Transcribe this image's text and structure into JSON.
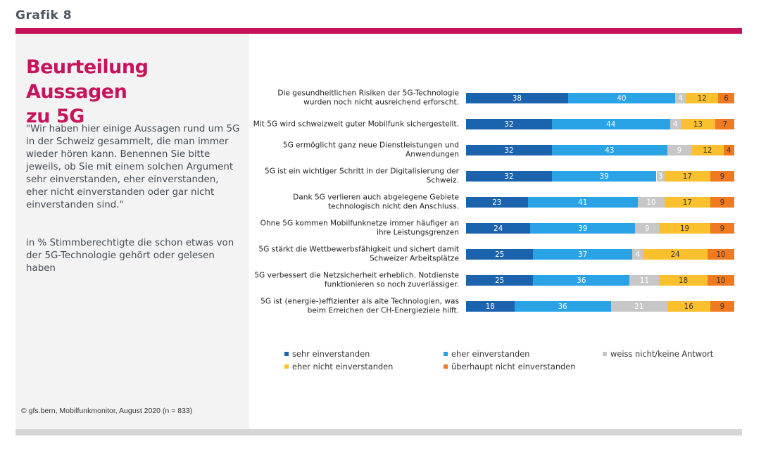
{
  "header": {
    "grafik_label": "Grafik 8"
  },
  "panel": {
    "title_line1": "Beurteilung Aussagen",
    "title_line2": "zu 5G",
    "question": "\"Wir haben hier einige Aussagen rund um 5G in der Schweiz gesammelt, die man immer wieder hören kann. Benennen Sie bitte jeweils, ob Sie mit einem solchen Argument sehr einverstanden, eher einverstanden, eher nicht einverstanden oder gar nicht einverstanden sind.\"",
    "subtitle": "in % Stimmberechtigte die schon etwas von der 5G-Technologie gehört oder gelesen haben",
    "source": "© gfs.bern, Mobilfunkmonitor, August 2020 (n = 833)"
  },
  "chart_data": {
    "type": "bar",
    "orientation": "horizontal",
    "stacked": true,
    "unit": "%",
    "categories": [
      [
        "Die gesundheitlichen Risiken der 5G-Technologie",
        "wurden noch nicht ausreichend erforscht."
      ],
      [
        "Mit 5G wird schweizweit guter Mobilfunk sichergestellt."
      ],
      [
        "5G ermöglicht ganz neue Dienstleistungen und",
        "Anwendungen"
      ],
      [
        "5G ist ein wichtiger Schritt in der Digitalisierung der",
        "Schweiz."
      ],
      [
        "Dank 5G verlieren auch abgelegene Gebiete",
        "technologisch nicht den Anschluss."
      ],
      [
        "Ohne 5G kommen Mobilfunknetze immer häufiger an",
        "ihre Leistungsgrenzen"
      ],
      [
        "5G stärkt die Wettbewerbsfähigkeit und sichert damit",
        "Schweizer Arbeitsplätze"
      ],
      [
        "5G verbessert die Netzsicherheit erheblich. Notdienste",
        "funktionieren so noch zuverlässiger."
      ],
      [
        "5G ist (energie-)effizienter als alte Technologien, was",
        "beim Erreichen der CH-Energieziele hilft."
      ]
    ],
    "series": [
      {
        "name": "sehr einverstanden",
        "color": "#1c63ad",
        "text_color": "#ffffff",
        "values": [
          38,
          32,
          32,
          32,
          23,
          24,
          25,
          25,
          18
        ]
      },
      {
        "name": "eher einverstanden",
        "color": "#2aa3e6",
        "text_color": "#ffffff",
        "values": [
          40,
          44,
          43,
          39,
          41,
          39,
          37,
          36,
          36
        ]
      },
      {
        "name": "weiss nicht/keine Antwort",
        "color": "#c7c7c7",
        "text_color": "#ffffff",
        "values": [
          4,
          4,
          9,
          3,
          10,
          9,
          4,
          11,
          21
        ]
      },
      {
        "name": "eher nicht einverstanden",
        "color": "#fbc02d",
        "text_color": "#333333",
        "values": [
          12,
          13,
          12,
          17,
          17,
          19,
          24,
          18,
          16
        ]
      },
      {
        "name": "überhaupt nicht einverstanden",
        "color": "#f07a22",
        "text_color": "#333333",
        "values": [
          6,
          7,
          4,
          9,
          9,
          9,
          10,
          10,
          9
        ]
      }
    ],
    "legend_order": [
      0,
      1,
      2,
      3,
      4
    ],
    "legend_position": "bottom",
    "xlim": [
      0,
      100
    ]
  }
}
